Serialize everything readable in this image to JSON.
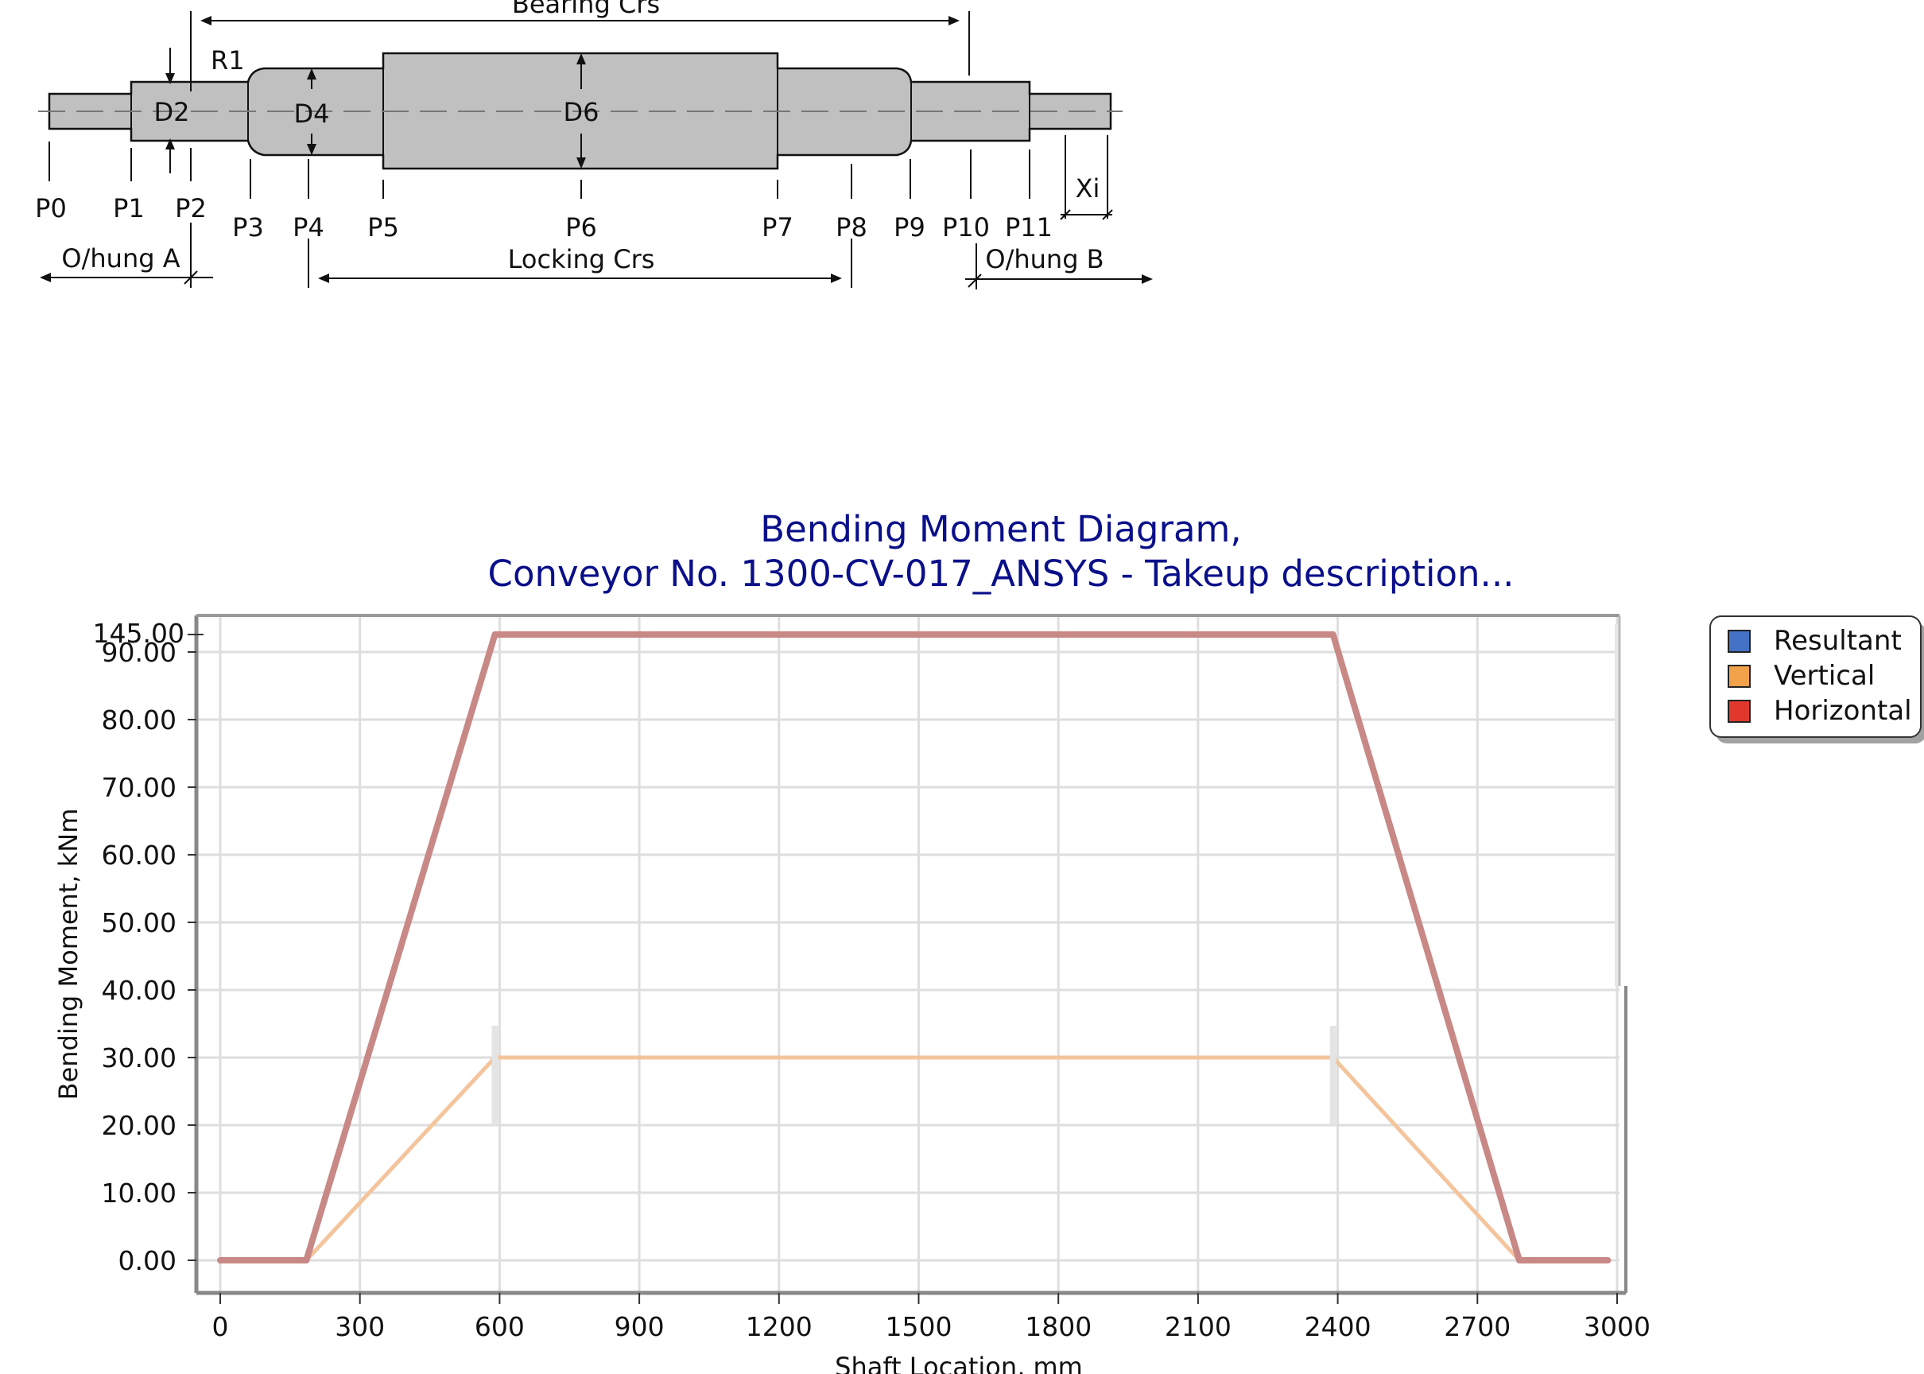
{
  "shaft": {
    "bearing_crs": "Bearing Crs",
    "locking_crs": "Locking Crs",
    "ohung_a": "O/hung A",
    "ohung_b": "O/hung B",
    "r1": "R1",
    "d2": "D2",
    "d4": "D4",
    "d6": "D6",
    "xi": "Xi",
    "points": [
      "P0",
      "P1",
      "P2",
      "P3",
      "P4",
      "P5",
      "P6",
      "P7",
      "P8",
      "P9",
      "P10",
      "P11"
    ]
  },
  "chart_data": {
    "type": "line",
    "title_line1": "Bending Moment Diagram,",
    "title_line2": "Conveyor No. 1300-CV-017_ANSYS - Takeup description...",
    "xlabel": "Shaft Location, mm",
    "ylabel": "Bending Moment, kNm",
    "xlim": [
      -50,
      3000
    ],
    "x_ticks": [
      0,
      300,
      600,
      900,
      1200,
      1500,
      1800,
      2100,
      2400,
      2700,
      3000
    ],
    "y_ticks": [
      0,
      10,
      20,
      30,
      40,
      50,
      60,
      70,
      80,
      90
    ],
    "y_tick_labels": [
      "0.00",
      "10.00",
      "20.00",
      "30.00",
      "40.00",
      "50.00",
      "60.00",
      "70.00",
      "80.00",
      "90.00"
    ],
    "y_top_label": "145.00",
    "y_broken_axis_note": "axis break between 90.00 and 145.00",
    "grid": true,
    "legend_position": "right",
    "series": [
      {
        "name": "Resultant",
        "color": "#4472c4",
        "x": [
          0,
          185,
          590,
          2390,
          2790,
          2980
        ],
        "y": [
          0,
          0,
          145,
          145,
          0,
          0
        ]
      },
      {
        "name": "Vertical",
        "color": "#f2a24a",
        "x": [
          0,
          185,
          590,
          2390,
          2790,
          2980
        ],
        "y": [
          0,
          0,
          30,
          30,
          0,
          0
        ]
      },
      {
        "name": "Horizontal",
        "color": "#e0392b",
        "x": [
          0,
          185,
          590,
          2390,
          2790,
          2980
        ],
        "y": [
          0,
          0,
          145,
          145,
          0,
          0
        ]
      }
    ]
  }
}
